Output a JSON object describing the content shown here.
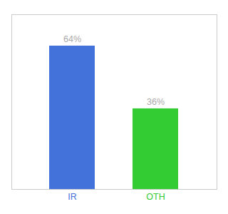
{
  "chart_data": {
    "type": "bar",
    "categories": [
      "IR",
      "OTH"
    ],
    "values": [
      64,
      36
    ],
    "value_labels": [
      "64%",
      "36%"
    ],
    "colors": [
      "#4472db",
      "#33cc33"
    ],
    "ylim": [
      0,
      78
    ],
    "data_labels": true,
    "tick_labels": "x"
  }
}
